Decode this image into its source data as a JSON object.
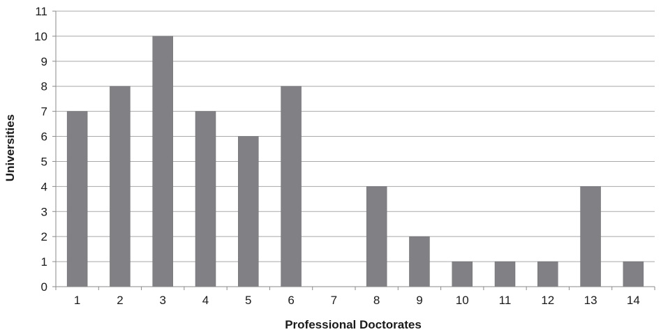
{
  "chart_data": {
    "type": "bar",
    "categories": [
      "1",
      "2",
      "3",
      "4",
      "5",
      "6",
      "7",
      "8",
      "9",
      "10",
      "11",
      "12",
      "13",
      "14"
    ],
    "values": [
      7,
      8,
      10,
      7,
      6,
      8,
      0,
      4,
      2,
      1,
      1,
      1,
      4,
      1
    ],
    "title": "",
    "xlabel": "Professional Doctorates",
    "ylabel": "Universities",
    "ylim": [
      0,
      11
    ],
    "yticks": [
      "0",
      "1",
      "2",
      "3",
      "4",
      "5",
      "6",
      "7",
      "8",
      "9",
      "10",
      "11"
    ],
    "grid": true,
    "legend": "none",
    "colors": {
      "bar": "#808085",
      "bar_edge": "#6e6e72",
      "grid": "#a8a8a8",
      "axis": "#8a8a8a"
    }
  }
}
